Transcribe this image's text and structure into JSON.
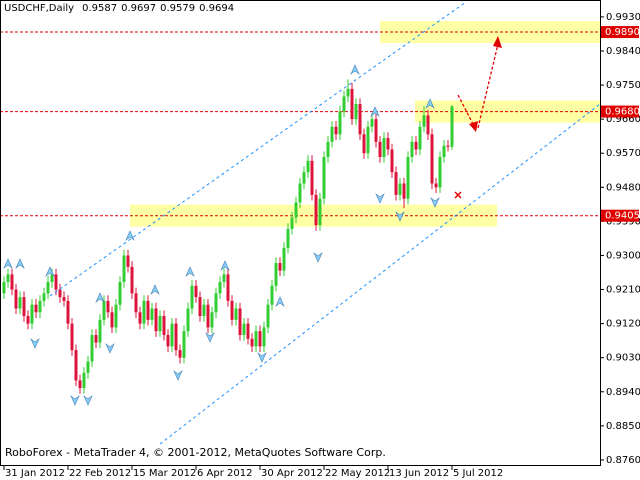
{
  "chart_data": {
    "type": "candlestick",
    "title": "USDCHF,Daily",
    "footer": "RoboForex - MetaTrader 4, © 2001-2012, MetaQuotes Software Corp.",
    "categories": [
      "31 Jan 2012",
      null,
      null,
      null,
      null,
      null,
      null,
      null,
      null,
      null,
      null,
      null,
      null,
      null,
      null,
      null,
      "22 Feb 2012",
      null,
      null,
      null,
      null,
      null,
      null,
      null,
      null,
      null,
      null,
      null,
      null,
      null,
      null,
      null,
      "15 Mar 2012",
      null,
      null,
      null,
      null,
      null,
      null,
      null,
      null,
      null,
      null,
      null,
      null,
      null,
      null,
      null,
      "6 Apr 2012",
      null,
      null,
      null,
      null,
      null,
      null,
      null,
      null,
      null,
      null,
      null,
      null,
      null,
      null,
      null,
      "30 Apr 2012",
      null,
      null,
      null,
      null,
      null,
      null,
      null,
      null,
      null,
      null,
      null,
      null,
      null,
      null,
      null,
      "22 May 2012",
      null,
      null,
      null,
      null,
      null,
      null,
      null,
      null,
      null,
      null,
      null,
      null,
      null,
      null,
      null,
      "13 Jun 2012",
      null,
      null,
      null,
      null,
      null,
      null,
      null,
      null,
      null,
      null,
      null,
      null,
      null,
      null,
      null,
      "5 Jul 2012"
    ],
    "open": [
      0.92,
      0.923,
      0.925,
      0.921,
      0.916,
      0.919,
      0.914,
      0.912,
      0.917,
      0.915,
      0.918,
      0.92,
      0.923,
      0.925,
      0.921,
      0.919,
      0.918,
      0.912,
      0.905,
      0.897,
      0.895,
      0.899,
      0.902,
      0.909,
      0.907,
      0.913,
      0.918,
      0.915,
      0.911,
      0.917,
      0.923,
      0.93,
      0.927,
      0.92,
      0.915,
      0.912,
      0.918,
      0.913,
      0.916,
      0.91,
      0.914,
      0.909,
      0.906,
      0.912,
      0.905,
      0.903,
      0.91,
      0.916,
      0.922,
      0.919,
      0.914,
      0.917,
      0.911,
      0.915,
      0.92,
      0.923,
      0.925,
      0.918,
      0.913,
      0.916,
      0.909,
      0.912,
      0.908,
      0.906,
      0.91,
      0.906,
      0.911,
      0.917,
      0.922,
      0.928,
      0.926,
      0.932,
      0.937,
      0.94,
      0.944,
      0.949,
      0.952,
      0.955,
      0.946,
      0.938,
      0.945,
      0.956,
      0.96,
      0.964,
      0.962,
      0.968,
      0.972,
      0.974,
      0.966,
      0.97,
      0.962,
      0.957,
      0.964,
      0.966,
      0.96,
      0.956,
      0.961,
      0.958,
      0.952,
      0.946,
      0.949,
      0.945,
      0.956,
      0.96,
      0.958,
      0.964,
      0.967,
      0.962,
      0.949,
      0.948,
      0.956,
      0.959,
      0.9587
    ],
    "high": [
      0.9245,
      0.9265,
      0.9265,
      0.9225,
      0.9205,
      0.9205,
      0.9155,
      0.9185,
      0.9185,
      0.9195,
      0.9215,
      0.9245,
      0.9265,
      0.9265,
      0.9225,
      0.9205,
      0.9195,
      0.9135,
      0.9065,
      0.8985,
      0.9005,
      0.9035,
      0.9105,
      0.9105,
      0.9145,
      0.9195,
      0.9195,
      0.9165,
      0.9185,
      0.9245,
      0.9315,
      0.9315,
      0.9285,
      0.9215,
      0.9165,
      0.9195,
      0.9195,
      0.9175,
      0.9175,
      0.9155,
      0.9155,
      0.9105,
      0.9135,
      0.9135,
      0.9065,
      0.9115,
      0.9175,
      0.9235,
      0.9235,
      0.9205,
      0.9185,
      0.9185,
      0.9165,
      0.9215,
      0.9245,
      0.9265,
      0.9265,
      0.9195,
      0.9175,
      0.9175,
      0.9135,
      0.9135,
      0.9095,
      0.9115,
      0.9115,
      0.9125,
      0.9185,
      0.9235,
      0.9295,
      0.9295,
      0.9335,
      0.9385,
      0.9415,
      0.9455,
      0.9505,
      0.9535,
      0.9565,
      0.9565,
      0.9475,
      0.9465,
      0.9575,
      0.9615,
      0.9655,
      0.9655,
      0.9695,
      0.9735,
      0.9765,
      0.9755,
      0.9715,
      0.9715,
      0.9635,
      0.9655,
      0.9675,
      0.9675,
      0.9615,
      0.9625,
      0.9625,
      0.9595,
      0.9535,
      0.9505,
      0.9505,
      0.9575,
      0.9615,
      0.9615,
      0.9655,
      0.9695,
      0.9685,
      0.9635,
      0.9505,
      0.9575,
      0.9605,
      0.9605,
      0.9697
    ],
    "low": [
      0.9185,
      0.9215,
      0.9195,
      0.9145,
      0.9145,
      0.9125,
      0.9105,
      0.9105,
      0.9135,
      0.9135,
      0.9165,
      0.9185,
      0.9215,
      0.9195,
      0.9175,
      0.9165,
      0.9105,
      0.9035,
      0.8955,
      0.8935,
      0.8935,
      0.8975,
      0.9005,
      0.9055,
      0.9055,
      0.9115,
      0.9135,
      0.9095,
      0.9095,
      0.9155,
      0.9215,
      0.9255,
      0.9185,
      0.9135,
      0.9105,
      0.9105,
      0.9115,
      0.9115,
      0.9085,
      0.9085,
      0.9075,
      0.9045,
      0.9045,
      0.9035,
      0.9015,
      0.9015,
      0.9085,
      0.9145,
      0.9175,
      0.9125,
      0.9125,
      0.9095,
      0.9095,
      0.9135,
      0.9185,
      0.9215,
      0.9165,
      0.9115,
      0.9115,
      0.9075,
      0.9075,
      0.9065,
      0.9045,
      0.9045,
      0.9045,
      0.9045,
      0.9095,
      0.9155,
      0.9205,
      0.9245,
      0.9245,
      0.9305,
      0.9355,
      0.9385,
      0.9425,
      0.9475,
      0.9505,
      0.9445,
      0.9365,
      0.9365,
      0.9435,
      0.9545,
      0.9585,
      0.9605,
      0.9605,
      0.9665,
      0.9705,
      0.9645,
      0.9645,
      0.9605,
      0.9555,
      0.9555,
      0.9625,
      0.9585,
      0.9545,
      0.9545,
      0.9565,
      0.9505,
      0.9445,
      0.9445,
      0.9425,
      0.9435,
      0.9545,
      0.9565,
      0.9565,
      0.9625,
      0.9605,
      0.9475,
      0.9465,
      0.9465,
      0.9545,
      0.9575,
      0.9579
    ],
    "close": [
      0.923,
      0.925,
      0.921,
      0.916,
      0.919,
      0.914,
      0.912,
      0.917,
      0.915,
      0.918,
      0.92,
      0.923,
      0.925,
      0.921,
      0.919,
      0.918,
      0.912,
      0.905,
      0.897,
      0.895,
      0.899,
      0.902,
      0.909,
      0.907,
      0.913,
      0.918,
      0.915,
      0.911,
      0.917,
      0.923,
      0.93,
      0.927,
      0.92,
      0.915,
      0.912,
      0.918,
      0.913,
      0.916,
      0.91,
      0.914,
      0.909,
      0.906,
      0.912,
      0.905,
      0.903,
      0.91,
      0.916,
      0.922,
      0.919,
      0.914,
      0.917,
      0.911,
      0.915,
      0.92,
      0.923,
      0.925,
      0.918,
      0.913,
      0.916,
      0.909,
      0.912,
      0.908,
      0.906,
      0.91,
      0.906,
      0.911,
      0.917,
      0.922,
      0.928,
      0.926,
      0.932,
      0.937,
      0.94,
      0.944,
      0.949,
      0.952,
      0.955,
      0.946,
      0.938,
      0.945,
      0.956,
      0.96,
      0.964,
      0.962,
      0.968,
      0.972,
      0.974,
      0.966,
      0.97,
      0.962,
      0.957,
      0.964,
      0.966,
      0.96,
      0.956,
      0.961,
      0.958,
      0.952,
      0.946,
      0.949,
      0.945,
      0.956,
      0.96,
      0.958,
      0.964,
      0.967,
      0.962,
      0.949,
      0.948,
      0.956,
      0.959,
      0.9587,
      0.9694
    ],
    "up_color": "#32cd32",
    "down_color": "#dc143c",
    "ylim": [
      0.8744,
      0.9972
    ],
    "yticks": [
      {
        "value": 0.993,
        "label": "0.9930"
      },
      {
        "value": 0.984,
        "label": "0.9840"
      },
      {
        "value": 0.975,
        "label": "0.9750"
      },
      {
        "value": 0.966,
        "label": "0.9660"
      },
      {
        "value": 0.957,
        "label": "0.9570"
      },
      {
        "value": 0.948,
        "label": "0.9480"
      },
      {
        "value": 0.939,
        "label": "0.9390"
      },
      {
        "value": 0.93,
        "label": "0.9300"
      },
      {
        "value": 0.921,
        "label": "0.9210"
      },
      {
        "value": 0.912,
        "label": "0.9120"
      },
      {
        "value": 0.903,
        "label": "0.9030"
      },
      {
        "value": 0.894,
        "label": "0.8940"
      },
      {
        "value": 0.885,
        "label": "0.8850"
      },
      {
        "value": 0.876,
        "label": "0.8760"
      }
    ],
    "levels": [
      {
        "value": 0.989,
        "label": "0.9890"
      },
      {
        "value": 0.968,
        "label": "0.9680"
      },
      {
        "value": 0.9405,
        "label": "0.9405"
      }
    ],
    "level_color": "#e00000"
  }
}
